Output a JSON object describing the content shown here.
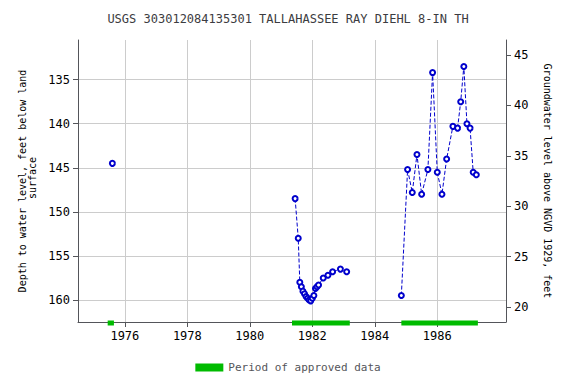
{
  "chart_data": {
    "type": "line",
    "title": "USGS 303012084135301 TALLAHASSEE RAY DIEHL 8-IN TH",
    "ylabel": "Depth to water level, feet below land\n surface",
    "y2label": "Groundwater level above NGVD 1929, feet",
    "xlim": [
      1974.5,
      1988.2
    ],
    "xticks": [
      1976,
      1978,
      1980,
      1982,
      1984,
      1986
    ],
    "ylim": [
      162.5,
      130.5
    ],
    "yticks": [
      135,
      140,
      145,
      150,
      155,
      160
    ],
    "y2lim": [
      18.5,
      46.5
    ],
    "y2ticks": [
      20,
      25,
      30,
      35,
      40,
      45
    ],
    "grid": true,
    "legend": "bottom",
    "series": [
      {
        "color": "#0000cc",
        "line_style": "dashed",
        "marker": "circle",
        "x": [
          1975.6
        ],
        "values": [
          144.5
        ]
      },
      {
        "color": "#0000cc",
        "line_style": "dashed",
        "marker": "circle",
        "x": [
          1981.45,
          1981.55,
          1981.6,
          1981.65,
          1981.7,
          1981.75,
          1981.8,
          1981.85,
          1981.9,
          1981.95,
          1982.0,
          1982.05,
          1982.1,
          1982.15,
          1982.2,
          1982.35,
          1982.5,
          1982.65,
          1982.9,
          1983.1
        ],
        "values": [
          148.5,
          153.0,
          158.0,
          158.5,
          159.0,
          159.3,
          159.6,
          159.8,
          160.0,
          160.1,
          159.8,
          159.5,
          158.7,
          158.5,
          158.3,
          157.5,
          157.2,
          156.8,
          156.5,
          156.8
        ]
      },
      {
        "color": "#0000cc",
        "line_style": "dashed",
        "marker": "circle",
        "x": [
          1984.85,
          1985.05,
          1985.2,
          1985.35,
          1985.5,
          1985.7,
          1985.85,
          1986.0,
          1986.15,
          1986.3,
          1986.5,
          1986.65,
          1986.75,
          1986.85,
          1986.95,
          1987.05,
          1987.15,
          1987.25
        ],
        "values": [
          159.5,
          145.2,
          147.8,
          143.5,
          148.0,
          145.2,
          134.2,
          145.5,
          148.0,
          144.0,
          140.3,
          140.5,
          137.5,
          133.5,
          140.0,
          140.5,
          145.5,
          145.8
        ]
      }
    ],
    "approved_periods": {
      "name": "Period of approved data",
      "color": "#00bb00",
      "ranges": [
        [
          1975.45,
          1975.65
        ],
        [
          1981.35,
          1983.2
        ],
        [
          1984.85,
          1987.3
        ]
      ]
    }
  }
}
